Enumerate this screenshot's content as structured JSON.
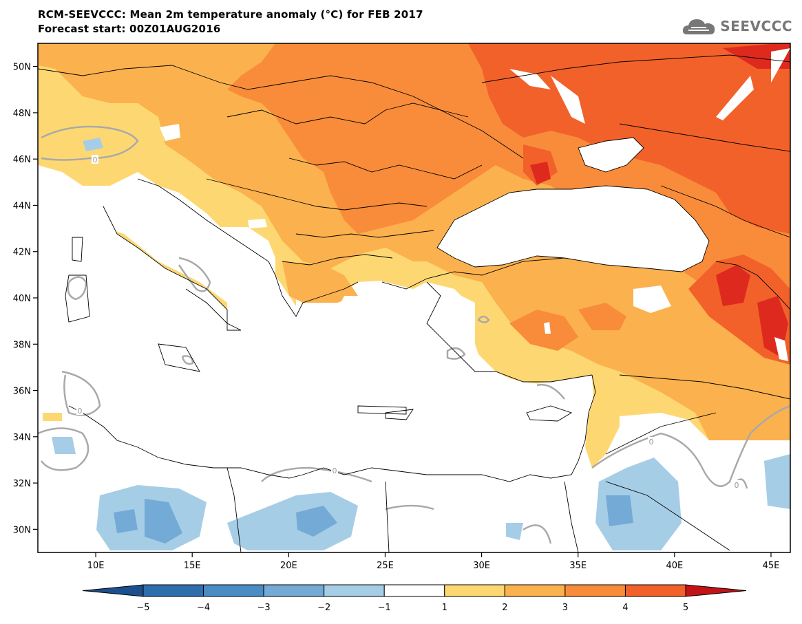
{
  "title": {
    "line1": "RCM-SEEVCCC: Mean 2m temperature anomaly (°C) for FEB 2017",
    "line2": "Forecast start: 00Z01AUG2016"
  },
  "logo": {
    "text": "SEEVCCC",
    "icon": "cloud-icon"
  },
  "map": {
    "lon_range": [
      7,
      46
    ],
    "lat_range": [
      29,
      51
    ],
    "lat_ticks": [
      {
        "value": 50,
        "label": "50N"
      },
      {
        "value": 48,
        "label": "48N"
      },
      {
        "value": 46,
        "label": "46N"
      },
      {
        "value": 44,
        "label": "44N"
      },
      {
        "value": 42,
        "label": "42N"
      },
      {
        "value": 40,
        "label": "40N"
      },
      {
        "value": 38,
        "label": "38N"
      },
      {
        "value": 36,
        "label": "36N"
      },
      {
        "value": 34,
        "label": "34N"
      },
      {
        "value": 32,
        "label": "32N"
      },
      {
        "value": 30,
        "label": "30N"
      }
    ],
    "lon_ticks": [
      {
        "value": 10,
        "label": "10E"
      },
      {
        "value": 15,
        "label": "15E"
      },
      {
        "value": 20,
        "label": "20E"
      },
      {
        "value": 25,
        "label": "25E"
      },
      {
        "value": 30,
        "label": "30E"
      },
      {
        "value": 35,
        "label": "35E"
      },
      {
        "value": 40,
        "label": "40E"
      },
      {
        "value": 45,
        "label": "45E"
      }
    ],
    "contour_labels": [
      "0",
      "0",
      "0",
      "0",
      "0"
    ]
  },
  "colorbar": {
    "labels": [
      "−5",
      "−4",
      "−3",
      "−2",
      "−1",
      "1",
      "2",
      "3",
      "4",
      "5"
    ],
    "colors": [
      "#1c4f8c",
      "#2f6eac",
      "#4a8cc4",
      "#73aad6",
      "#a6cde6",
      "#ffffff",
      "#fdd872",
      "#fbb14e",
      "#f88c3a",
      "#f2612a",
      "#de2a1e",
      "#c21316"
    ]
  }
}
